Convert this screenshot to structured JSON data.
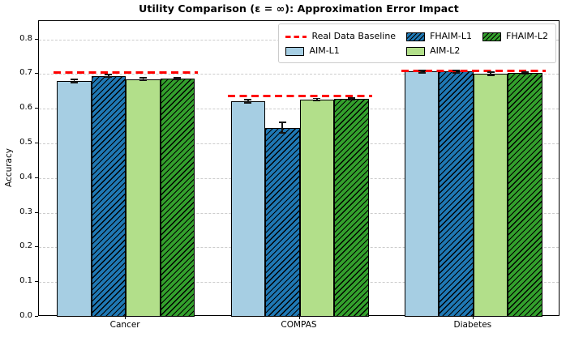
{
  "chart_data": {
    "type": "bar",
    "title": "Utility Comparison (ε = ∞): Approximation Error Impact",
    "xlabel": "",
    "ylabel": "Accuracy",
    "ylim": [
      0,
      0.853
    ],
    "yticks": [
      0.0,
      0.1,
      0.2,
      0.3,
      0.4,
      0.5,
      0.6,
      0.7,
      0.8
    ],
    "grid": "horizontal-dashed",
    "legend_position": "upper right",
    "categories": [
      "Cancer",
      "COMPAS",
      "Diabetes"
    ],
    "baseline": {
      "label": "Real Data Baseline",
      "color": "#ff0000",
      "style": "dashed",
      "values": [
        0.705,
        0.636,
        0.71
      ]
    },
    "series": [
      {
        "name": "AIM-L1",
        "color": "#a6cee3",
        "hatch": false,
        "values": [
          0.68,
          0.622,
          0.707
        ],
        "errors": [
          0.004,
          0.005,
          0.003
        ]
      },
      {
        "name": "FHAIM-L1",
        "color": "#1f78b4",
        "hatch": true,
        "values": [
          0.695,
          0.545,
          0.707
        ],
        "errors": [
          0.004,
          0.015,
          0.003
        ]
      },
      {
        "name": "AIM-L2",
        "color": "#b2df8a",
        "hatch": false,
        "values": [
          0.685,
          0.627,
          0.701
        ],
        "errors": [
          0.004,
          0.003,
          0.004
        ]
      },
      {
        "name": "FHAIM-L2",
        "color": "#33a02c",
        "hatch": true,
        "values": [
          0.687,
          0.628,
          0.703
        ],
        "errors": [
          0.003,
          0.003,
          0.003
        ]
      }
    ],
    "colors": {
      "grid": "#cdcdcd",
      "spine": "#000000",
      "hatch": "#000000",
      "error_bar": "#151515"
    }
  }
}
